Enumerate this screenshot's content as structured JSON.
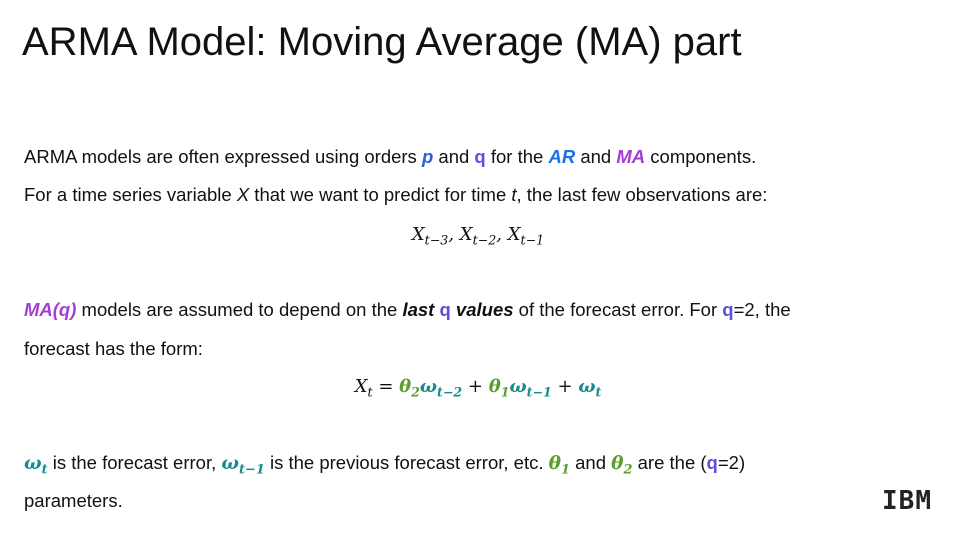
{
  "header": {
    "title": "ARMA Model: Moving Average (MA) part"
  },
  "paragraphs": [
    [
      "ARMA models are often expressed using orders ",
      "p",
      " and ",
      "q",
      " for the ",
      "AR",
      " and ",
      "MA",
      " components."
    ],
    [
      "For a time series variable ",
      "X",
      " that we want to predict for time ",
      "t",
      ", the last few observations are:"
    ],
    [
      "MA(q)",
      " models are assumed to depend on the ",
      "last ",
      "q",
      " values",
      " of the forecast error. For ",
      "q",
      "=2, the"
    ],
    [
      "forecast has the form:"
    ],
    [
      "ω",
      "t",
      " is the forecast error, ",
      "ω",
      "t−1",
      " is the previous forecast error, etc. ",
      "θ",
      "1",
      " and ",
      "θ",
      "2",
      " are the (",
      "q",
      "=2)"
    ],
    [
      "parameters."
    ]
  ],
  "formulas": [
    [
      "X",
      "t−3",
      ", ",
      "X",
      "t−2",
      ", ",
      "X",
      "t−1"
    ],
    [
      "X",
      "t",
      " = ",
      "θ",
      "2",
      "ω",
      "t−2",
      " + ",
      "θ",
      "1",
      "ω",
      "t−1",
      " + ",
      "ω",
      "t"
    ]
  ],
  "logo": "IBM"
}
